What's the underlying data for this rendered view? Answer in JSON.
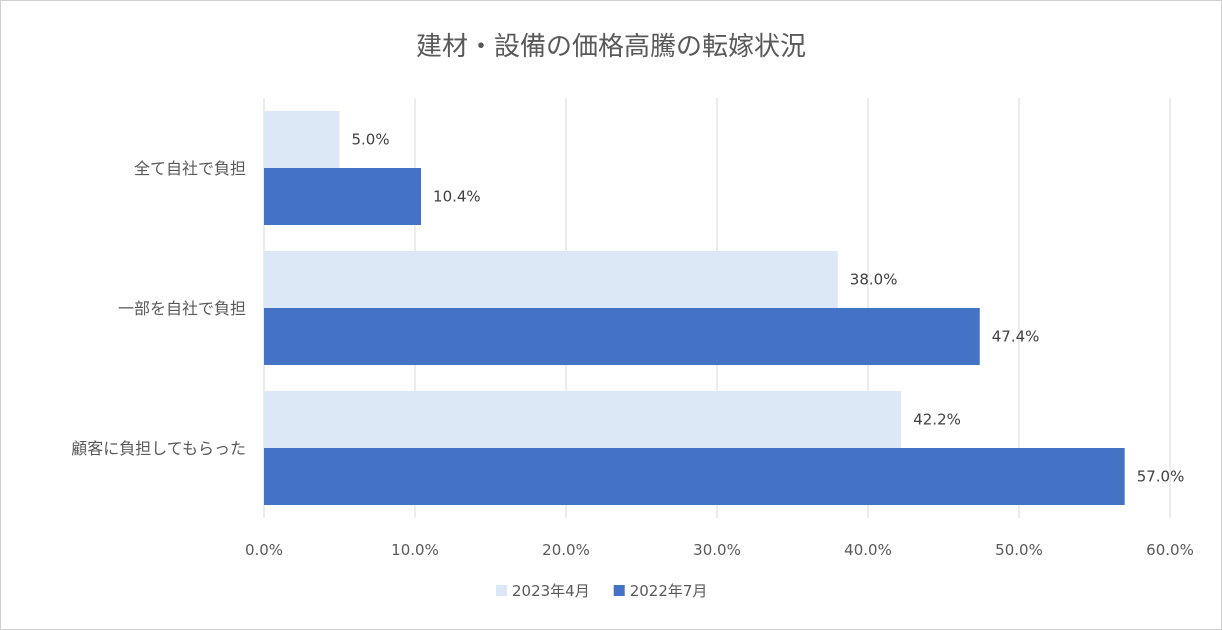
{
  "chart_data": {
    "type": "bar",
    "orientation": "horizontal",
    "title": "建材・設備の価格高騰の転嫁状況",
    "categories": [
      "全て自社で負担",
      "一部を自社で負担",
      "顧客に負担してもらった"
    ],
    "series": [
      {
        "name": "2023年4月",
        "values": [
          5.0,
          38.0,
          42.2
        ],
        "labels": [
          "5.0%",
          "38.0%",
          "42.2%"
        ],
        "color": "#dde8f6"
      },
      {
        "name": "2022年7月",
        "values": [
          10.4,
          47.4,
          57.0
        ],
        "labels": [
          "10.4%",
          "47.4%",
          "57.0%"
        ],
        "color": "#4472c4"
      }
    ],
    "xlim": [
      0,
      60
    ],
    "xticks": [
      "0.0%",
      "10.0%",
      "20.0%",
      "30.0%",
      "40.0%",
      "50.0%",
      "60.0%"
    ],
    "grid": true,
    "legend": "bottom"
  }
}
